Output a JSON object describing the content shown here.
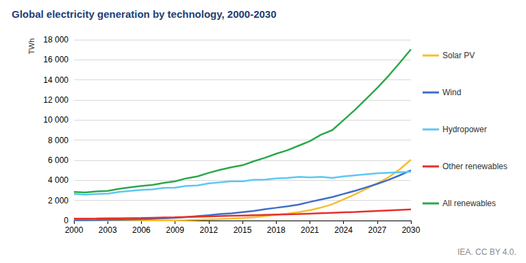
{
  "chart_data": {
    "type": "line",
    "title": "Global electricity generation by technology, 2000-2030",
    "y_label": "TWh",
    "annotation": "IEA. CC BY 4.0.",
    "x": [
      2000,
      2001,
      2002,
      2003,
      2004,
      2005,
      2006,
      2007,
      2008,
      2009,
      2010,
      2011,
      2012,
      2013,
      2014,
      2015,
      2016,
      2017,
      2018,
      2019,
      2020,
      2021,
      2022,
      2023,
      2024,
      2025,
      2026,
      2027,
      2028,
      2029,
      2030
    ],
    "series": [
      {
        "name": "Solar PV",
        "color": "#f7bd2f",
        "values": [
          1,
          2,
          2,
          3,
          4,
          5,
          6,
          8,
          12,
          20,
          32,
          65,
          100,
          140,
          190,
          250,
          330,
          440,
          570,
          690,
          830,
          1020,
          1290,
          1630,
          2100,
          2600,
          3150,
          3700,
          4300,
          5100,
          6050
        ]
      },
      {
        "name": "Wind",
        "color": "#3f6ec6",
        "values": [
          30,
          40,
          50,
          65,
          85,
          105,
          130,
          170,
          220,
          275,
          345,
          440,
          530,
          640,
          710,
          830,
          960,
          1130,
          1270,
          1420,
          1590,
          1850,
          2100,
          2330,
          2650,
          2950,
          3300,
          3650,
          4050,
          4500,
          5000
        ]
      },
      {
        "name": "Hydropower",
        "color": "#5cc8f4",
        "values": [
          2650,
          2580,
          2650,
          2680,
          2850,
          2950,
          3050,
          3100,
          3250,
          3270,
          3450,
          3500,
          3700,
          3800,
          3900,
          3900,
          4050,
          4080,
          4200,
          4250,
          4350,
          4300,
          4350,
          4250,
          4400,
          4500,
          4600,
          4700,
          4750,
          4800,
          4850
        ]
      },
      {
        "name": "Other renewables",
        "color": "#e5302a",
        "values": [
          180,
          190,
          200,
          215,
          230,
          245,
          260,
          280,
          300,
          320,
          350,
          380,
          410,
          440,
          470,
          500,
          530,
          560,
          590,
          620,
          650,
          690,
          730,
          770,
          810,
          850,
          900,
          950,
          1000,
          1050,
          1100
        ]
      },
      {
        "name": "All renewables",
        "color": "#2ba84a",
        "values": [
          2850,
          2800,
          2900,
          2950,
          3150,
          3300,
          3450,
          3550,
          3750,
          3900,
          4200,
          4400,
          4750,
          5050,
          5300,
          5500,
          5900,
          6250,
          6650,
          7000,
          7450,
          7900,
          8550,
          9000,
          10000,
          11000,
          12100,
          13200,
          14400,
          15700,
          17050
        ]
      }
    ],
    "xlim": [
      2000,
      2030
    ],
    "xticks": [
      2000,
      2003,
      2006,
      2009,
      2012,
      2015,
      2018,
      2021,
      2024,
      2027,
      2030
    ],
    "ylim": [
      0,
      18000
    ],
    "yticks": [
      0,
      {
        "value": 2000,
        "label": "2 000"
      },
      {
        "value": 4000,
        "label": "4 000"
      },
      {
        "value": 6000,
        "label": "6 000"
      },
      {
        "value": 8000,
        "label": "8 000"
      },
      {
        "value": 10000,
        "label": "10 000"
      },
      {
        "value": 12000,
        "label": "12 000"
      },
      {
        "value": 14000,
        "label": "14 000"
      },
      {
        "value": 16000,
        "label": "16 000"
      },
      {
        "value": 18000,
        "label": "18 000"
      }
    ],
    "grid": true,
    "legend": "right"
  }
}
